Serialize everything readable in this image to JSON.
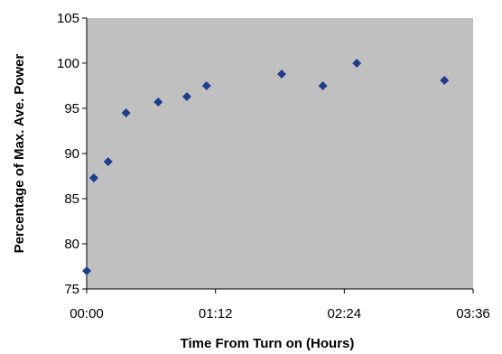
{
  "chart_data": {
    "type": "scatter",
    "title": "",
    "xlabel": "Time From Turn on (Hours)",
    "ylabel": "Percentage of Max. Ave. Power",
    "xlim": [
      "00:00",
      "03:36"
    ],
    "ylim": [
      75,
      105
    ],
    "x_ticks": [
      "00:00",
      "01:12",
      "02:24",
      "03:36"
    ],
    "y_ticks": [
      75,
      80,
      85,
      90,
      95,
      100,
      105
    ],
    "grid": false,
    "legend": "none",
    "series": [
      {
        "marker": "diamond",
        "color": "#1f3d8a",
        "points": [
          {
            "x": "00:00",
            "y": 77.0
          },
          {
            "x": "00:04",
            "y": 87.3
          },
          {
            "x": "00:12",
            "y": 89.1
          },
          {
            "x": "00:22",
            "y": 94.5
          },
          {
            "x": "00:40",
            "y": 95.7
          },
          {
            "x": "00:56",
            "y": 96.3
          },
          {
            "x": "01:07",
            "y": 97.5
          },
          {
            "x": "01:49",
            "y": 98.8
          },
          {
            "x": "02:12",
            "y": 97.5
          },
          {
            "x": "02:31",
            "y": 100.0
          },
          {
            "x": "03:20",
            "y": 98.1
          }
        ]
      }
    ]
  },
  "colors": {
    "plot_background": "#c0c0c0",
    "marker": "#1f3d8a",
    "axis": "#000000"
  }
}
